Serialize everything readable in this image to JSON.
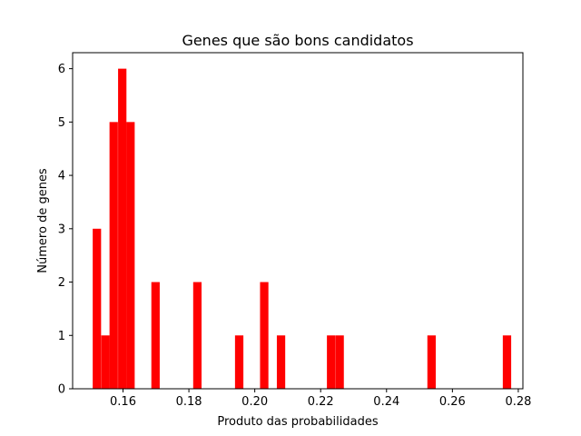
{
  "chart_data": {
    "type": "bar",
    "title": "Genes que são bons candidatos",
    "xlabel": "Produto das probabilidades",
    "ylabel": "Número de genes",
    "xlim": [
      0.1447,
      0.2814
    ],
    "ylim": [
      0,
      6.3
    ],
    "bin_width": 0.00254,
    "bar_color": "#ff0000",
    "grid": false,
    "x_ticks": [
      {
        "value": 0.16,
        "label": "0.16"
      },
      {
        "value": 0.18,
        "label": "0.18"
      },
      {
        "value": 0.2,
        "label": "0.20"
      },
      {
        "value": 0.22,
        "label": "0.22"
      },
      {
        "value": 0.24,
        "label": "0.24"
      },
      {
        "value": 0.26,
        "label": "0.26"
      },
      {
        "value": 0.28,
        "label": "0.28"
      }
    ],
    "y_ticks": [
      {
        "value": 0,
        "label": "0"
      },
      {
        "value": 1,
        "label": "1"
      },
      {
        "value": 2,
        "label": "2"
      },
      {
        "value": 3,
        "label": "3"
      },
      {
        "value": 4,
        "label": "4"
      },
      {
        "value": 5,
        "label": "5"
      },
      {
        "value": 6,
        "label": "6"
      }
    ],
    "bins": [
      {
        "x0": 0.1508,
        "count": 3
      },
      {
        "x0": 0.1534,
        "count": 1
      },
      {
        "x0": 0.1559,
        "count": 5
      },
      {
        "x0": 0.1585,
        "count": 6
      },
      {
        "x0": 0.161,
        "count": 5
      },
      {
        "x0": 0.1686,
        "count": 2
      },
      {
        "x0": 0.1813,
        "count": 2
      },
      {
        "x0": 0.194,
        "count": 1
      },
      {
        "x0": 0.2016,
        "count": 2
      },
      {
        "x0": 0.2067,
        "count": 1
      },
      {
        "x0": 0.2219,
        "count": 1
      },
      {
        "x0": 0.2245,
        "count": 1
      },
      {
        "x0": 0.2524,
        "count": 1
      },
      {
        "x0": 0.2753,
        "count": 1
      }
    ]
  }
}
